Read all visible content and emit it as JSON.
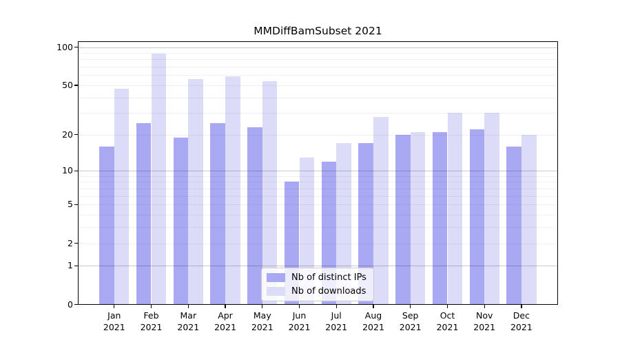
{
  "chart_data": {
    "type": "bar",
    "title": "MMDiffBamSubset 2021",
    "categories": [
      "Jan",
      "Feb",
      "Mar",
      "Apr",
      "May",
      "Jun",
      "Jul",
      "Aug",
      "Sep",
      "Oct",
      "Nov",
      "Dec"
    ],
    "category_sub_label": "2021",
    "series": [
      {
        "name": "Nb of distinct IPs",
        "color": "#a8a8f3",
        "values": [
          16,
          25,
          19,
          25,
          23,
          8,
          12,
          17,
          20,
          21,
          22,
          16
        ]
      },
      {
        "name": "Nb of downloads",
        "color": "#dcdcf8",
        "values": [
          47,
          89,
          56,
          59,
          54,
          13,
          17,
          28,
          21,
          30,
          30,
          20
        ]
      }
    ],
    "yscale": "log1p",
    "ylim": [
      0,
      111
    ],
    "ytick_labels": [
      0,
      1,
      2,
      5,
      10,
      20,
      50,
      100
    ],
    "major_gridlines": [
      1,
      10,
      100
    ],
    "minor_gridlines": [
      2,
      3,
      4,
      5,
      6,
      7,
      8,
      9,
      20,
      30,
      40,
      50,
      60,
      70,
      80,
      90
    ],
    "grid": true,
    "legend": {
      "position": "lower center",
      "entries": [
        "Nb of distinct IPs",
        "Nb of downloads"
      ]
    },
    "colors": {
      "distinct_ips": "#a8a8f3",
      "downloads": "#dcdcf8",
      "axis": "#000000",
      "background": "#ffffff"
    }
  }
}
